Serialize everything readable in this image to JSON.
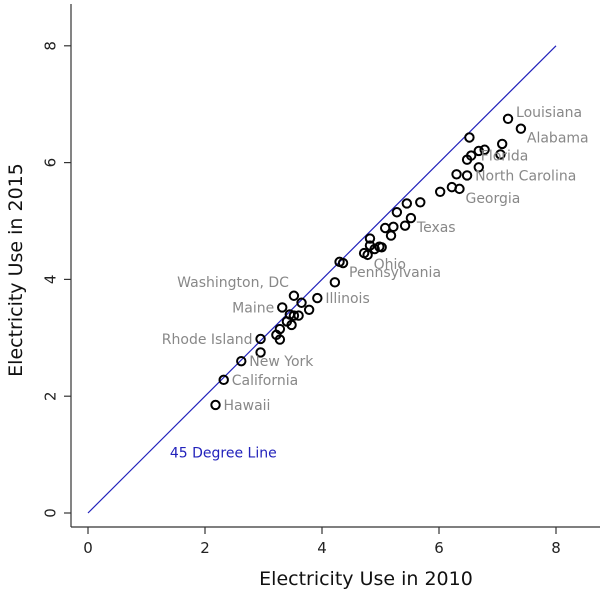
{
  "chart_data": {
    "type": "scatter",
    "xlabel": "Electricity Use in 2010",
    "ylabel": "Electricity Use in 2015",
    "xlim": [
      0,
      8.3
    ],
    "ylim": [
      0,
      8.6
    ],
    "x_ticks": [
      0,
      2,
      4,
      6,
      8
    ],
    "y_ticks": [
      0,
      2,
      4,
      6,
      8
    ],
    "grid": false,
    "point_style": "open-circle",
    "reference_line": {
      "label": "45 Degree Line",
      "x": [
        0,
        8
      ],
      "y": [
        0,
        8
      ],
      "label_at": [
        1.4,
        0.95
      ],
      "color": "#2222bb"
    },
    "label_color": "#888888",
    "point_color": "#000000",
    "points": [
      {
        "x": 2.18,
        "y": 1.85,
        "label": "Hawaii",
        "label_pos": "right"
      },
      {
        "x": 2.32,
        "y": 2.28,
        "label": "California",
        "label_pos": "right"
      },
      {
        "x": 2.62,
        "y": 2.6,
        "label": "New York",
        "label_pos": "right"
      },
      {
        "x": 2.95,
        "y": 2.75
      },
      {
        "x": 2.95,
        "y": 2.98,
        "label": "Rhode Island",
        "label_pos": "left"
      },
      {
        "x": 3.22,
        "y": 3.05
      },
      {
        "x": 3.28,
        "y": 2.97
      },
      {
        "x": 3.28,
        "y": 3.15
      },
      {
        "x": 3.32,
        "y": 3.52,
        "label": "Maine",
        "label_pos": "left"
      },
      {
        "x": 3.4,
        "y": 3.28
      },
      {
        "x": 3.45,
        "y": 3.4
      },
      {
        "x": 3.48,
        "y": 3.22
      },
      {
        "x": 3.52,
        "y": 3.38
      },
      {
        "x": 3.52,
        "y": 3.72,
        "label": "Washington, DC",
        "label_pos": "upper-left"
      },
      {
        "x": 3.6,
        "y": 3.38
      },
      {
        "x": 3.65,
        "y": 3.6
      },
      {
        "x": 3.78,
        "y": 3.48
      },
      {
        "x": 3.92,
        "y": 3.68,
        "label": "Illinois",
        "label_pos": "right"
      },
      {
        "x": 4.22,
        "y": 3.95
      },
      {
        "x": 4.3,
        "y": 4.3
      },
      {
        "x": 4.36,
        "y": 4.28,
        "label": "Pennsylvania",
        "label_pos": "lower-right"
      },
      {
        "x": 4.72,
        "y": 4.45
      },
      {
        "x": 4.78,
        "y": 4.42,
        "label": "Ohio",
        "label_pos": "lower-right"
      },
      {
        "x": 4.82,
        "y": 4.58
      },
      {
        "x": 4.82,
        "y": 4.7
      },
      {
        "x": 4.9,
        "y": 4.52
      },
      {
        "x": 4.98,
        "y": 4.56
      },
      {
        "x": 5.02,
        "y": 4.55
      },
      {
        "x": 5.08,
        "y": 4.88
      },
      {
        "x": 5.18,
        "y": 4.75
      },
      {
        "x": 5.22,
        "y": 4.9
      },
      {
        "x": 5.28,
        "y": 5.15
      },
      {
        "x": 5.42,
        "y": 4.92
      },
      {
        "x": 5.45,
        "y": 5.3
      },
      {
        "x": 5.52,
        "y": 5.05,
        "label": "Texas",
        "label_pos": "lower-right"
      },
      {
        "x": 5.68,
        "y": 5.32
      },
      {
        "x": 6.02,
        "y": 5.5
      },
      {
        "x": 6.22,
        "y": 5.58
      },
      {
        "x": 6.3,
        "y": 5.8
      },
      {
        "x": 6.35,
        "y": 5.55,
        "label": "Georgia",
        "label_pos": "lower-right"
      },
      {
        "x": 6.48,
        "y": 5.78,
        "label": "North Carolina",
        "label_pos": "right"
      },
      {
        "x": 6.48,
        "y": 6.05
      },
      {
        "x": 6.52,
        "y": 6.43
      },
      {
        "x": 6.55,
        "y": 6.12
      },
      {
        "x": 6.68,
        "y": 5.92,
        "label": "Florida",
        "label_pos": "right-up"
      },
      {
        "x": 6.68,
        "y": 6.2
      },
      {
        "x": 6.78,
        "y": 6.22
      },
      {
        "x": 7.05,
        "y": 6.14
      },
      {
        "x": 7.08,
        "y": 6.32
      },
      {
        "x": 7.18,
        "y": 6.75,
        "label": "Louisiana",
        "label_pos": "upper-right"
      },
      {
        "x": 7.4,
        "y": 6.58,
        "label": "Alabama",
        "label_pos": "lower-right"
      }
    ]
  }
}
